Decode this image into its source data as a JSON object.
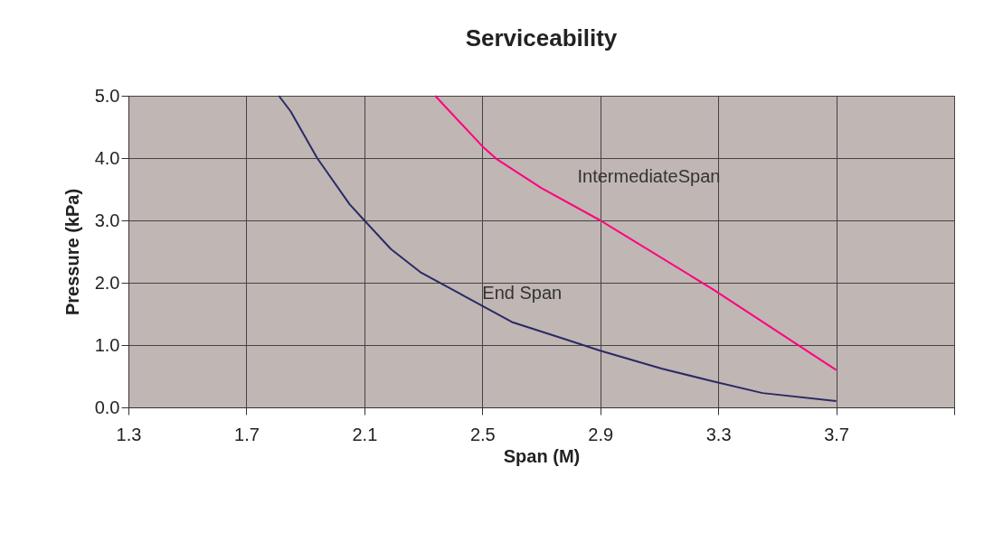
{
  "chart_data": {
    "type": "line",
    "title": "Serviceability",
    "xlabel": "Span (M)",
    "ylabel": "Pressure (kPa)",
    "xlim": [
      1.3,
      4.1
    ],
    "xticks": [
      1.3,
      1.7,
      2.1,
      2.5,
      2.9,
      3.3,
      3.7,
      {
        "value": 4.1,
        "label": null
      }
    ],
    "ylim": [
      0,
      5
    ],
    "yticks": [
      {
        "value": 0,
        "label": "0.0"
      },
      {
        "value": 1,
        "label": "1.0"
      },
      {
        "value": 2,
        "label": "2.0"
      },
      {
        "value": 3,
        "label": "3.0"
      },
      {
        "value": 4,
        "label": "4.0"
      },
      {
        "value": 5,
        "label": "5.0"
      }
    ],
    "grid": true,
    "legend": false,
    "marker": "none",
    "line_style": "solid",
    "series": [
      {
        "name": "End Span",
        "color": "#2a2a66",
        "x": [
          1.81,
          1.85,
          1.94,
          2.05,
          2.1,
          2.19,
          2.29,
          2.5,
          2.6,
          2.79,
          2.9,
          3.11,
          3.28,
          3.45,
          3.7
        ],
        "values": [
          5.0,
          4.75,
          4.0,
          3.26,
          3.0,
          2.54,
          2.17,
          1.63,
          1.37,
          1.08,
          0.91,
          0.62,
          0.42,
          0.23,
          0.1
        ]
      },
      {
        "name": "IntermediateSpan",
        "color": "#ff0080",
        "x": [
          2.34,
          2.5,
          2.55,
          2.7,
          2.9,
          3.28,
          3.7
        ],
        "values": [
          5.0,
          4.19,
          3.98,
          3.52,
          3.0,
          1.9,
          0.6
        ]
      }
    ]
  }
}
